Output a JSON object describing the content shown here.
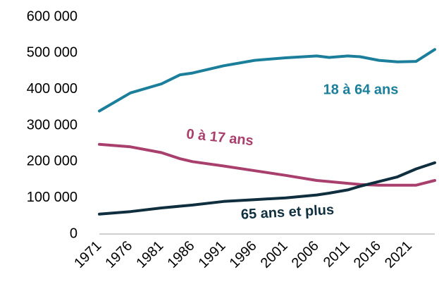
{
  "chart_data": {
    "type": "line",
    "x": [
      1971,
      1976,
      1981,
      1984,
      1986,
      1991,
      1996,
      2001,
      2006,
      2008,
      2011,
      2013,
      2016,
      2019,
      2022,
      2025
    ],
    "series": [
      {
        "name": "18 à 64 ans",
        "color": "#1b7f9b",
        "values": [
          340000,
          390000,
          415000,
          440000,
          445000,
          465000,
          480000,
          487000,
          492000,
          488000,
          492000,
          490000,
          480000,
          476000,
          477000,
          510000
        ]
      },
      {
        "name": "0 à 17 ans",
        "color": "#a83f6d",
        "values": [
          248000,
          241000,
          225000,
          208000,
          200000,
          188000,
          175000,
          162000,
          148000,
          145000,
          140000,
          137000,
          135000,
          135000,
          135000,
          148000
        ]
      },
      {
        "name": "65 ans et plus",
        "color": "#0f2e3e",
        "values": [
          55000,
          62000,
          72000,
          77000,
          80000,
          90000,
          95000,
          100000,
          108000,
          113000,
          122000,
          132000,
          145000,
          158000,
          180000,
          197000
        ]
      }
    ],
    "xlim": [
      1971,
      2025
    ],
    "xticks": [
      1971,
      1976,
      1981,
      1986,
      1991,
      1996,
      2001,
      2006,
      2011,
      2016,
      2021
    ],
    "ylim": [
      0,
      600000
    ],
    "yticks": [
      0,
      {
        "value": 100000,
        "label": "100 000"
      },
      {
        "value": 200000,
        "label": "200 000"
      },
      {
        "value": 300000,
        "label": "300 000"
      },
      {
        "value": 400000,
        "label": "400 000"
      },
      {
        "value": 500000,
        "label": "500 000"
      },
      {
        "value": 600000,
        "label": "600 000"
      }
    ],
    "grid": false
  }
}
